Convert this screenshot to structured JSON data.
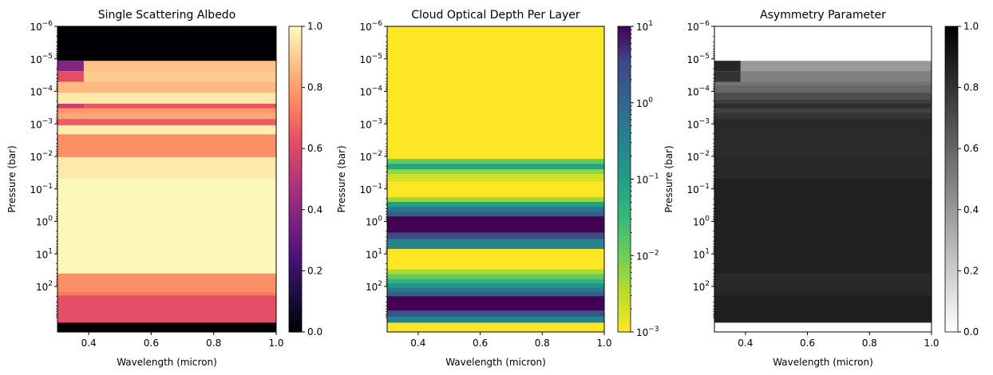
{
  "chart_data": [
    {
      "type": "heatmap",
      "title": "Single Scattering Albedo",
      "xlabel": "Wavelength (micron)",
      "ylabel": "Pressure (bar)",
      "xlim": [
        0.3,
        1.0
      ],
      "ylim": [
        1e-06,
        250
      ],
      "y_scale": "log",
      "y_inverted": true,
      "x_ticks": [
        "0.4",
        "0.6",
        "0.8",
        "1.0"
      ],
      "y_ticks": [
        "−6",
        "−5",
        "−4",
        "−3",
        "−2",
        "−1",
        "0",
        "1",
        "2"
      ],
      "colormap": "magma",
      "colorbar": {
        "range": [
          0,
          1
        ],
        "ticks": [
          "0.0",
          "0.2",
          "0.4",
          "0.6",
          "0.8",
          "1.0"
        ]
      },
      "layers": [
        {
          "p_top": 1e-06,
          "p_bottom": 1.15e-05,
          "value": 0.0
        },
        {
          "p_top": 1.15e-05,
          "p_bottom": 2.4e-05,
          "value": 0.88,
          "short_wave_value": 0.38
        },
        {
          "p_top": 2.4e-05,
          "p_bottom": 5.1e-05,
          "value": 0.9,
          "short_wave_value": 0.62
        },
        {
          "p_top": 5.1e-05,
          "p_bottom": 6.6e-05,
          "value": 0.86
        },
        {
          "p_top": 6.6e-05,
          "p_bottom": 0.00011,
          "value": 0.86
        },
        {
          "p_top": 0.00011,
          "p_bottom": 0.00018,
          "value": 0.96
        },
        {
          "p_top": 0.00018,
          "p_bottom": 0.00024,
          "value": 0.96
        },
        {
          "p_top": 0.00024,
          "p_bottom": 0.00033,
          "value": 0.64,
          "short_wave_value": 0.55
        },
        {
          "p_top": 0.00033,
          "p_bottom": 0.00046,
          "value": 0.78
        },
        {
          "p_top": 0.00046,
          "p_bottom": 0.00071,
          "value": 0.82
        },
        {
          "p_top": 0.00071,
          "p_bottom": 0.00085,
          "value": 0.66
        },
        {
          "p_top": 0.00085,
          "p_bottom": 0.0011,
          "value": 0.66
        },
        {
          "p_top": 0.0011,
          "p_bottom": 0.0021,
          "value": 0.97
        },
        {
          "p_top": 0.0021,
          "p_bottom": 0.0105,
          "value": 0.77
        },
        {
          "p_top": 0.0105,
          "p_bottom": 0.048,
          "value": 0.96
        },
        {
          "p_top": 0.048,
          "p_bottom": 40,
          "value": 0.99
        },
        {
          "p_top": 40,
          "p_bottom": 150,
          "value": 0.77
        },
        {
          "p_top": 150,
          "p_bottom": 190,
          "value": 0.72
        },
        {
          "p_top": 190,
          "p_bottom": 1300,
          "value": 0.62
        },
        {
          "p_top": 1300,
          "p_bottom": 2500,
          "value": 0.0
        }
      ]
    },
    {
      "type": "heatmap",
      "title": "Cloud Optical Depth Per Layer",
      "xlabel": "Wavelength (micron)",
      "ylabel": "Pressure (bar)",
      "xlim": [
        0.3,
        1.0
      ],
      "ylim": [
        1e-06,
        250
      ],
      "y_scale": "log",
      "y_inverted": true,
      "x_ticks": [
        "0.4",
        "0.6",
        "0.8",
        "1.0"
      ],
      "y_ticks": [
        "−6",
        "−5",
        "−4",
        "−3",
        "−2",
        "−1",
        "0",
        "1",
        "2"
      ],
      "colormap": "viridis_r",
      "colorbar": {
        "scale": "log",
        "range": [
          0.001,
          10
        ],
        "ticks": [
          "−3",
          "−2",
          "−1",
          "0",
          "1"
        ]
      },
      "layers": [
        {
          "p_top": 1e-06,
          "p_bottom": 0.012,
          "value": 0.001
        },
        {
          "p_top": 0.012,
          "p_bottom": 0.017,
          "value": 0.012
        },
        {
          "p_top": 0.017,
          "p_bottom": 0.025,
          "value": 0.08
        },
        {
          "p_top": 0.025,
          "p_bottom": 0.035,
          "value": 0.006
        },
        {
          "p_top": 0.035,
          "p_bottom": 0.06,
          "value": 0.002
        },
        {
          "p_top": 0.06,
          "p_bottom": 0.18,
          "value": 0.001
        },
        {
          "p_top": 0.18,
          "p_bottom": 0.25,
          "value": 0.005
        },
        {
          "p_top": 0.25,
          "p_bottom": 0.36,
          "value": 0.1
        },
        {
          "p_top": 0.36,
          "p_bottom": 0.5,
          "value": 0.6
        },
        {
          "p_top": 0.5,
          "p_bottom": 0.7,
          "value": 1.5
        },
        {
          "p_top": 0.7,
          "p_bottom": 2.2,
          "value": 10
        },
        {
          "p_top": 2.2,
          "p_bottom": 3.5,
          "value": 3
        },
        {
          "p_top": 3.5,
          "p_bottom": 7,
          "value": 0.3
        },
        {
          "p_top": 7,
          "p_bottom": 30,
          "value": 0.001
        },
        {
          "p_top": 30,
          "p_bottom": 42,
          "value": 0.004
        },
        {
          "p_top": 42,
          "p_bottom": 60,
          "value": 0.012
        },
        {
          "p_top": 60,
          "p_bottom": 80,
          "value": 0.04
        },
        {
          "p_top": 80,
          "p_bottom": 110,
          "value": 0.15
        },
        {
          "p_top": 110,
          "p_bottom": 150,
          "value": 0.5
        },
        {
          "p_top": 150,
          "p_bottom": 200,
          "value": 1.5
        },
        {
          "p_top": 200,
          "p_bottom": 550,
          "value": 10
        },
        {
          "p_top": 550,
          "p_bottom": 850,
          "value": 2
        },
        {
          "p_top": 850,
          "p_bottom": 1300,
          "value": 0.3
        },
        {
          "p_top": 1300,
          "p_bottom": 2500,
          "value": 0.001
        }
      ]
    },
    {
      "type": "heatmap",
      "title": "Asymmetry Parameter",
      "xlabel": "Wavelength (micron)",
      "ylabel": "Pressure (bar)",
      "xlim": [
        0.3,
        1.0
      ],
      "ylim": [
        1e-06,
        250
      ],
      "y_scale": "log",
      "y_inverted": true,
      "x_ticks": [
        "0.4",
        "0.6",
        "0.8",
        "1.0"
      ],
      "y_ticks": [
        "−6",
        "−5",
        "−4",
        "−3",
        "−2",
        "−1",
        "0",
        "1",
        "2"
      ],
      "colormap": "gray_r",
      "colorbar": {
        "range": [
          0,
          1
        ],
        "ticks": [
          "0.0",
          "0.2",
          "0.4",
          "0.6",
          "0.8",
          "1.0"
        ]
      },
      "layers": [
        {
          "p_top": 1e-06,
          "p_bottom": 1.15e-05,
          "value": 0.0
        },
        {
          "p_top": 1.15e-05,
          "p_bottom": 2.4e-05,
          "value": 0.4,
          "short_wave_value": 0.85
        },
        {
          "p_top": 2.4e-05,
          "p_bottom": 5.1e-05,
          "value": 0.5,
          "short_wave_value": 0.8
        },
        {
          "p_top": 5.1e-05,
          "p_bottom": 6.6e-05,
          "value": 0.55
        },
        {
          "p_top": 6.6e-05,
          "p_bottom": 0.00011,
          "value": 0.6
        },
        {
          "p_top": 0.00011,
          "p_bottom": 0.00018,
          "value": 0.7
        },
        {
          "p_top": 0.00018,
          "p_bottom": 0.00024,
          "value": 0.76
        },
        {
          "p_top": 0.00024,
          "p_bottom": 0.00033,
          "value": 0.82
        },
        {
          "p_top": 0.00033,
          "p_bottom": 0.00046,
          "value": 0.74
        },
        {
          "p_top": 0.00046,
          "p_bottom": 0.00071,
          "value": 0.8
        },
        {
          "p_top": 0.00071,
          "p_bottom": 0.0011,
          "value": 0.84
        },
        {
          "p_top": 0.0011,
          "p_bottom": 0.0021,
          "value": 0.84
        },
        {
          "p_top": 0.0021,
          "p_bottom": 0.0105,
          "value": 0.83
        },
        {
          "p_top": 0.0105,
          "p_bottom": 0.048,
          "value": 0.84
        },
        {
          "p_top": 0.048,
          "p_bottom": 40,
          "value": 0.87
        },
        {
          "p_top": 40,
          "p_bottom": 150,
          "value": 0.84
        },
        {
          "p_top": 150,
          "p_bottom": 190,
          "value": 0.85
        },
        {
          "p_top": 190,
          "p_bottom": 1300,
          "value": 0.88
        },
        {
          "p_top": 1300,
          "p_bottom": 2500,
          "value": 0.0
        }
      ]
    }
  ]
}
